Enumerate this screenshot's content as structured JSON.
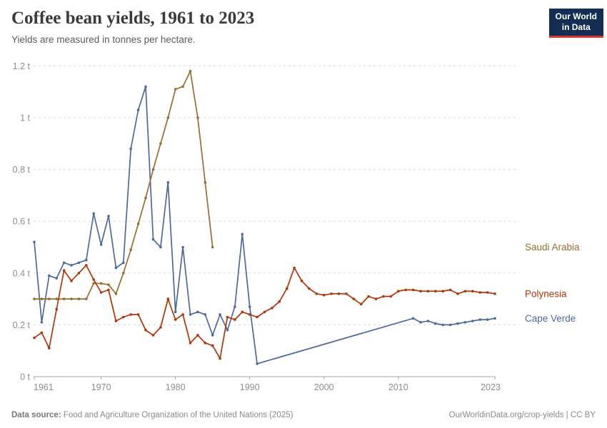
{
  "header": {
    "title": "Coffee bean yields, 1961 to 2023",
    "subtitle": "Yields are measured in tonnes per hectare."
  },
  "logo": {
    "line1": "Our World",
    "line2": "in Data",
    "bg_color": "#142d52",
    "accent_color": "#d93832"
  },
  "footer": {
    "source_label": "Data source:",
    "source": "Food and Agriculture Organization of the United Nations (2025)",
    "credit": "OurWorldinData.org/crop-yields | CC BY"
  },
  "chart_data": {
    "type": "line",
    "title": "Coffee bean yields, 1961 to 2023",
    "ylabel": "tonnes per hectare",
    "xlabel": "",
    "xlim": [
      1961,
      2023
    ],
    "ylim": [
      0,
      1.2
    ],
    "grid": true,
    "legend_position": "right-end-labels",
    "x_ticks": [
      1961,
      1970,
      1980,
      1990,
      2000,
      2010,
      2023
    ],
    "y_ticks": [
      {
        "value": 0,
        "label": "0 t"
      },
      {
        "value": 0.2,
        "label": "0.2 t"
      },
      {
        "value": 0.4,
        "label": "0.4 t"
      },
      {
        "value": 0.6,
        "label": "0.6 t"
      },
      {
        "value": 0.8,
        "label": "0.8 t"
      },
      {
        "value": 1,
        "label": "1 t"
      },
      {
        "value": 1.2,
        "label": "1.2 t"
      }
    ],
    "axis_colors": {
      "grid": "#d9d9d9",
      "axis": "#a9a9a9",
      "tick_text": "#8e8e8e"
    },
    "series": [
      {
        "name": "Cape Verde",
        "color": "#4C6A9C",
        "note": "no data between 1991 and 2012 (straight connector)",
        "points": [
          [
            1961,
            0.52
          ],
          [
            1962,
            0.21
          ],
          [
            1963,
            0.39
          ],
          [
            1964,
            0.38
          ],
          [
            1965,
            0.44
          ],
          [
            1966,
            0.43
          ],
          [
            1967,
            0.44
          ],
          [
            1968,
            0.45
          ],
          [
            1969,
            0.63
          ],
          [
            1970,
            0.51
          ],
          [
            1971,
            0.62
          ],
          [
            1972,
            0.42
          ],
          [
            1973,
            0.44
          ],
          [
            1974,
            0.88
          ],
          [
            1975,
            1.03
          ],
          [
            1976,
            1.12
          ],
          [
            1977,
            0.53
          ],
          [
            1978,
            0.5
          ],
          [
            1979,
            0.75
          ],
          [
            1980,
            0.25
          ],
          [
            1981,
            0.5
          ],
          [
            1982,
            0.24
          ],
          [
            1983,
            0.25
          ],
          [
            1984,
            0.24
          ],
          [
            1985,
            0.16
          ],
          [
            1986,
            0.24
          ],
          [
            1987,
            0.18
          ],
          [
            1988,
            0.27
          ],
          [
            1989,
            0.55
          ],
          [
            1990,
            0.27
          ],
          [
            1991,
            0.05
          ],
          [
            2012,
            0.225
          ],
          [
            2013,
            0.21
          ],
          [
            2014,
            0.215
          ],
          [
            2015,
            0.205
          ],
          [
            2016,
            0.2
          ],
          [
            2017,
            0.2
          ],
          [
            2018,
            0.205
          ],
          [
            2019,
            0.21
          ],
          [
            2020,
            0.215
          ],
          [
            2021,
            0.22
          ],
          [
            2022,
            0.22
          ],
          [
            2023,
            0.225
          ]
        ]
      },
      {
        "name": "Saudi Arabia",
        "color": "#996D2F",
        "points": [
          [
            1961,
            0.3
          ],
          [
            1962,
            0.3
          ],
          [
            1963,
            0.3
          ],
          [
            1964,
            0.3
          ],
          [
            1965,
            0.3
          ],
          [
            1966,
            0.3
          ],
          [
            1967,
            0.3
          ],
          [
            1968,
            0.3
          ],
          [
            1969,
            0.36
          ],
          [
            1970,
            0.36
          ],
          [
            1971,
            0.355
          ],
          [
            1972,
            0.32
          ],
          [
            1973,
            0.4
          ],
          [
            1974,
            0.49
          ],
          [
            1975,
            0.59
          ],
          [
            1976,
            0.69
          ],
          [
            1977,
            0.8
          ],
          [
            1978,
            0.9
          ],
          [
            1979,
            1.0
          ],
          [
            1980,
            1.11
          ],
          [
            1981,
            1.12
          ],
          [
            1982,
            1.18
          ],
          [
            1983,
            1.0
          ],
          [
            1984,
            0.75
          ],
          [
            1985,
            0.5
          ]
        ]
      },
      {
        "name": "Polynesia",
        "color": "#B13507",
        "points": [
          [
            1961,
            0.15
          ],
          [
            1962,
            0.17
          ],
          [
            1963,
            0.11
          ],
          [
            1964,
            0.26
          ],
          [
            1965,
            0.41
          ],
          [
            1966,
            0.37
          ],
          [
            1967,
            0.4
          ],
          [
            1968,
            0.43
          ],
          [
            1969,
            0.375
          ],
          [
            1970,
            0.325
          ],
          [
            1971,
            0.335
          ],
          [
            1972,
            0.215
          ],
          [
            1973,
            0.23
          ],
          [
            1974,
            0.24
          ],
          [
            1975,
            0.24
          ],
          [
            1976,
            0.18
          ],
          [
            1977,
            0.16
          ],
          [
            1978,
            0.19
          ],
          [
            1979,
            0.3
          ],
          [
            1980,
            0.22
          ],
          [
            1981,
            0.24
          ],
          [
            1982,
            0.13
          ],
          [
            1983,
            0.16
          ],
          [
            1984,
            0.13
          ],
          [
            1985,
            0.12
          ],
          [
            1986,
            0.07
          ],
          [
            1987,
            0.23
          ],
          [
            1988,
            0.22
          ],
          [
            1989,
            0.25
          ],
          [
            1990,
            0.24
          ],
          [
            1991,
            0.23
          ],
          [
            1992,
            0.25
          ],
          [
            1993,
            0.265
          ],
          [
            1994,
            0.29
          ],
          [
            1995,
            0.34
          ],
          [
            1996,
            0.42
          ],
          [
            1997,
            0.37
          ],
          [
            1998,
            0.34
          ],
          [
            1999,
            0.32
          ],
          [
            2000,
            0.315
          ],
          [
            2001,
            0.32
          ],
          [
            2002,
            0.32
          ],
          [
            2003,
            0.32
          ],
          [
            2004,
            0.3
          ],
          [
            2005,
            0.28
          ],
          [
            2006,
            0.31
          ],
          [
            2007,
            0.3
          ],
          [
            2008,
            0.31
          ],
          [
            2009,
            0.31
          ],
          [
            2010,
            0.33
          ],
          [
            2011,
            0.335
          ],
          [
            2012,
            0.335
          ],
          [
            2013,
            0.33
          ],
          [
            2014,
            0.33
          ],
          [
            2015,
            0.33
          ],
          [
            2016,
            0.33
          ],
          [
            2017,
            0.335
          ],
          [
            2018,
            0.32
          ],
          [
            2019,
            0.33
          ],
          [
            2020,
            0.33
          ],
          [
            2021,
            0.325
          ],
          [
            2022,
            0.325
          ],
          [
            2023,
            0.32
          ]
        ]
      }
    ]
  }
}
